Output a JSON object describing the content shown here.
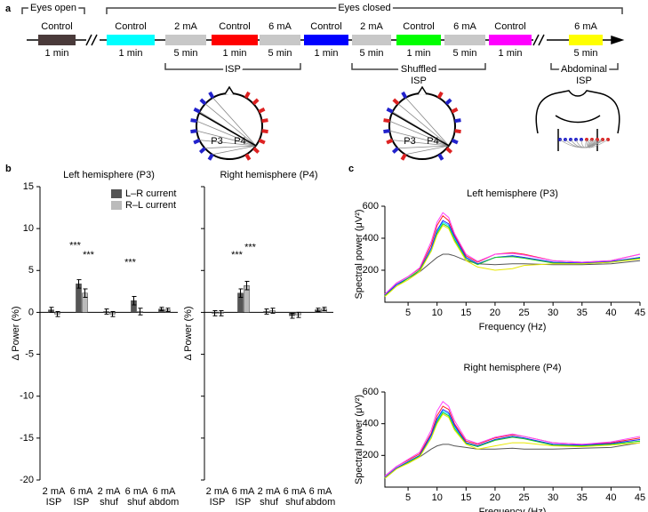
{
  "panel_labels": [
    "a",
    "b",
    "c"
  ],
  "panel_a": {
    "eyes_open": "Eyes open",
    "eyes_closed": "Eyes closed",
    "segments": [
      {
        "label": "Control",
        "duration": "1 min",
        "color": "#4a3a3a"
      },
      {
        "label": "Control",
        "duration": "1 min",
        "color": "#00ffff"
      },
      {
        "label": "2 mA",
        "duration": "5 min",
        "color": "#c8c8c8"
      },
      {
        "label": "Control",
        "duration": "1 min",
        "color": "#ff0000"
      },
      {
        "label": "6 mA",
        "duration": "5 min",
        "color": "#c8c8c8"
      },
      {
        "label": "Control",
        "duration": "1 min",
        "color": "#0000ff"
      },
      {
        "label": "2 mA",
        "duration": "5 min",
        "color": "#c8c8c8"
      },
      {
        "label": "Control",
        "duration": "1 min",
        "color": "#00ff00"
      },
      {
        "label": "6 mA",
        "duration": "5 min",
        "color": "#c8c8c8"
      },
      {
        "label": "Control",
        "duration": "1 min",
        "color": "#ff00ff"
      },
      {
        "label": "6 mA",
        "duration": "5 min",
        "color": "#ffff00"
      }
    ],
    "groups": [
      [
        "ISP"
      ],
      [
        "Shuffled",
        "ISP"
      ],
      [
        "Abdominal",
        "ISP"
      ]
    ],
    "electrodes": [
      "P3",
      "P4"
    ]
  },
  "chart_data": [
    {
      "type": "bar",
      "title": "Left hemisphere (P3)",
      "y_label": "Δ Power (%)",
      "categories": [
        [
          "2 mA",
          "ISP"
        ],
        [
          "6 mA",
          "ISP"
        ],
        [
          "2 mA",
          "shuf"
        ],
        [
          "6 mA",
          "shuf"
        ],
        [
          "6 mA",
          "abdom"
        ]
      ],
      "series": [
        {
          "name": "L–R current",
          "color": "#555555",
          "values": [
            0.3,
            3.4,
            0.1,
            1.4,
            0.4
          ],
          "errors": [
            0.3,
            0.5,
            0.3,
            0.5,
            0.2
          ],
          "significance": [
            null,
            "***",
            null,
            "***",
            null
          ]
        },
        {
          "name": "R–L current",
          "color": "#bbbbbb",
          "values": [
            -0.2,
            2.3,
            -0.2,
            0.1,
            0.3
          ],
          "errors": [
            0.3,
            0.5,
            0.3,
            0.4,
            0.2
          ],
          "significance": [
            null,
            "***",
            null,
            null,
            null
          ]
        }
      ],
      "ylim": [
        -20,
        15
      ],
      "yticks": [
        -20,
        -15,
        -10,
        -5,
        0,
        5,
        10,
        15
      ],
      "legend": "top"
    },
    {
      "type": "bar",
      "title": "Right hemisphere (P4)",
      "y_label": "Δ Power (%)",
      "categories": [
        [
          "2 mA",
          "ISP"
        ],
        [
          "6 mA",
          "ISP"
        ],
        [
          "2 mA",
          "shuf"
        ],
        [
          "6 mA",
          "shuf"
        ],
        [
          "6 mA",
          "abdom"
        ]
      ],
      "series": [
        {
          "color": "#555555",
          "values": [
            -0.1,
            2.3,
            0.1,
            -0.4,
            0.3
          ],
          "errors": [
            0.3,
            0.5,
            0.3,
            0.3,
            0.2
          ],
          "significance": [
            null,
            "***",
            null,
            null,
            null
          ]
        },
        {
          "color": "#bbbbbb",
          "values": [
            -0.1,
            3.2,
            0.2,
            -0.3,
            0.4
          ],
          "errors": [
            0.3,
            0.5,
            0.3,
            0.3,
            0.2
          ],
          "significance": [
            null,
            "***",
            null,
            null,
            null
          ]
        }
      ],
      "ylim": [
        -20,
        15
      ],
      "yticks": [
        -20,
        -15,
        -10,
        -5,
        0,
        5,
        10,
        15
      ]
    },
    {
      "type": "line",
      "title": "Left hemisphere (P3)",
      "x_label": "Frequency (Hz)",
      "y_label": "Spectral power (μV²)",
      "x": [
        1,
        3,
        5,
        7,
        9,
        10,
        11,
        12,
        13,
        15,
        17,
        20,
        23,
        25,
        30,
        35,
        40,
        45
      ],
      "series": [
        {
          "color": "#555555",
          "values": [
            40,
            110,
            150,
            190,
            250,
            280,
            300,
            300,
            290,
            260,
            240,
            235,
            240,
            240,
            235,
            235,
            240,
            260
          ]
        },
        {
          "color": "#00e5ff",
          "values": [
            40,
            110,
            150,
            200,
            330,
            440,
            500,
            480,
            400,
            280,
            240,
            280,
            290,
            280,
            250,
            240,
            250,
            280
          ]
        },
        {
          "color": "#ff2020",
          "values": [
            50,
            120,
            160,
            210,
            360,
            480,
            540,
            510,
            420,
            290,
            250,
            300,
            310,
            300,
            260,
            250,
            260,
            300
          ]
        },
        {
          "color": "#2020ff",
          "values": [
            45,
            110,
            150,
            200,
            340,
            450,
            510,
            490,
            410,
            280,
            240,
            280,
            290,
            280,
            250,
            245,
            255,
            280
          ]
        },
        {
          "color": "#20d020",
          "values": [
            40,
            100,
            150,
            200,
            320,
            430,
            490,
            470,
            390,
            270,
            235,
            280,
            285,
            275,
            245,
            240,
            250,
            275
          ]
        },
        {
          "color": "#ff40ff",
          "values": [
            50,
            120,
            160,
            215,
            380,
            500,
            560,
            530,
            430,
            300,
            255,
            300,
            305,
            295,
            260,
            250,
            260,
            300
          ]
        },
        {
          "color": "#e8e800",
          "values": [
            35,
            100,
            140,
            190,
            320,
            420,
            480,
            460,
            380,
            260,
            220,
            200,
            210,
            230,
            240,
            240,
            250,
            270
          ]
        }
      ],
      "xlim": [
        1,
        45
      ],
      "xticks": [
        5,
        10,
        15,
        20,
        25,
        30,
        35,
        40,
        45
      ],
      "ylim": [
        0,
        600
      ],
      "yticks": [
        200,
        400,
        600
      ]
    },
    {
      "type": "line",
      "title": "Right hemisphere (P4)",
      "x_label": "Frequency (Hz)",
      "y_label": "Spectral power (μV²)",
      "x": [
        1,
        3,
        5,
        7,
        9,
        10,
        11,
        12,
        13,
        15,
        17,
        20,
        23,
        25,
        30,
        35,
        40,
        45
      ],
      "series": [
        {
          "color": "#555555",
          "values": [
            60,
            120,
            150,
            190,
            240,
            260,
            270,
            270,
            260,
            250,
            240,
            240,
            245,
            240,
            240,
            245,
            250,
            280
          ]
        },
        {
          "color": "#00e5ff",
          "values": [
            60,
            120,
            160,
            200,
            320,
            420,
            480,
            460,
            380,
            280,
            260,
            300,
            320,
            310,
            270,
            260,
            270,
            290
          ]
        },
        {
          "color": "#ff2020",
          "values": [
            70,
            130,
            170,
            210,
            340,
            450,
            510,
            490,
            400,
            290,
            270,
            310,
            330,
            320,
            280,
            270,
            280,
            310
          ]
        },
        {
          "color": "#2020ff",
          "values": [
            60,
            120,
            160,
            200,
            330,
            430,
            490,
            470,
            390,
            280,
            260,
            300,
            320,
            310,
            270,
            265,
            275,
            300
          ]
        },
        {
          "color": "#20d020",
          "values": [
            55,
            115,
            155,
            195,
            310,
            410,
            470,
            450,
            370,
            275,
            255,
            295,
            315,
            305,
            265,
            260,
            270,
            290
          ]
        },
        {
          "color": "#ff40ff",
          "values": [
            70,
            130,
            175,
            220,
            360,
            480,
            540,
            510,
            420,
            300,
            275,
            315,
            335,
            320,
            280,
            270,
            285,
            320
          ]
        },
        {
          "color": "#e8e800",
          "values": [
            55,
            115,
            150,
            190,
            310,
            400,
            460,
            440,
            360,
            270,
            240,
            260,
            280,
            280,
            260,
            255,
            265,
            280
          ]
        }
      ],
      "xlim": [
        1,
        45
      ],
      "xticks": [
        5,
        10,
        15,
        20,
        25,
        30,
        35,
        40,
        45
      ],
      "ylim": [
        0,
        600
      ],
      "yticks": [
        200,
        400,
        600
      ]
    }
  ]
}
